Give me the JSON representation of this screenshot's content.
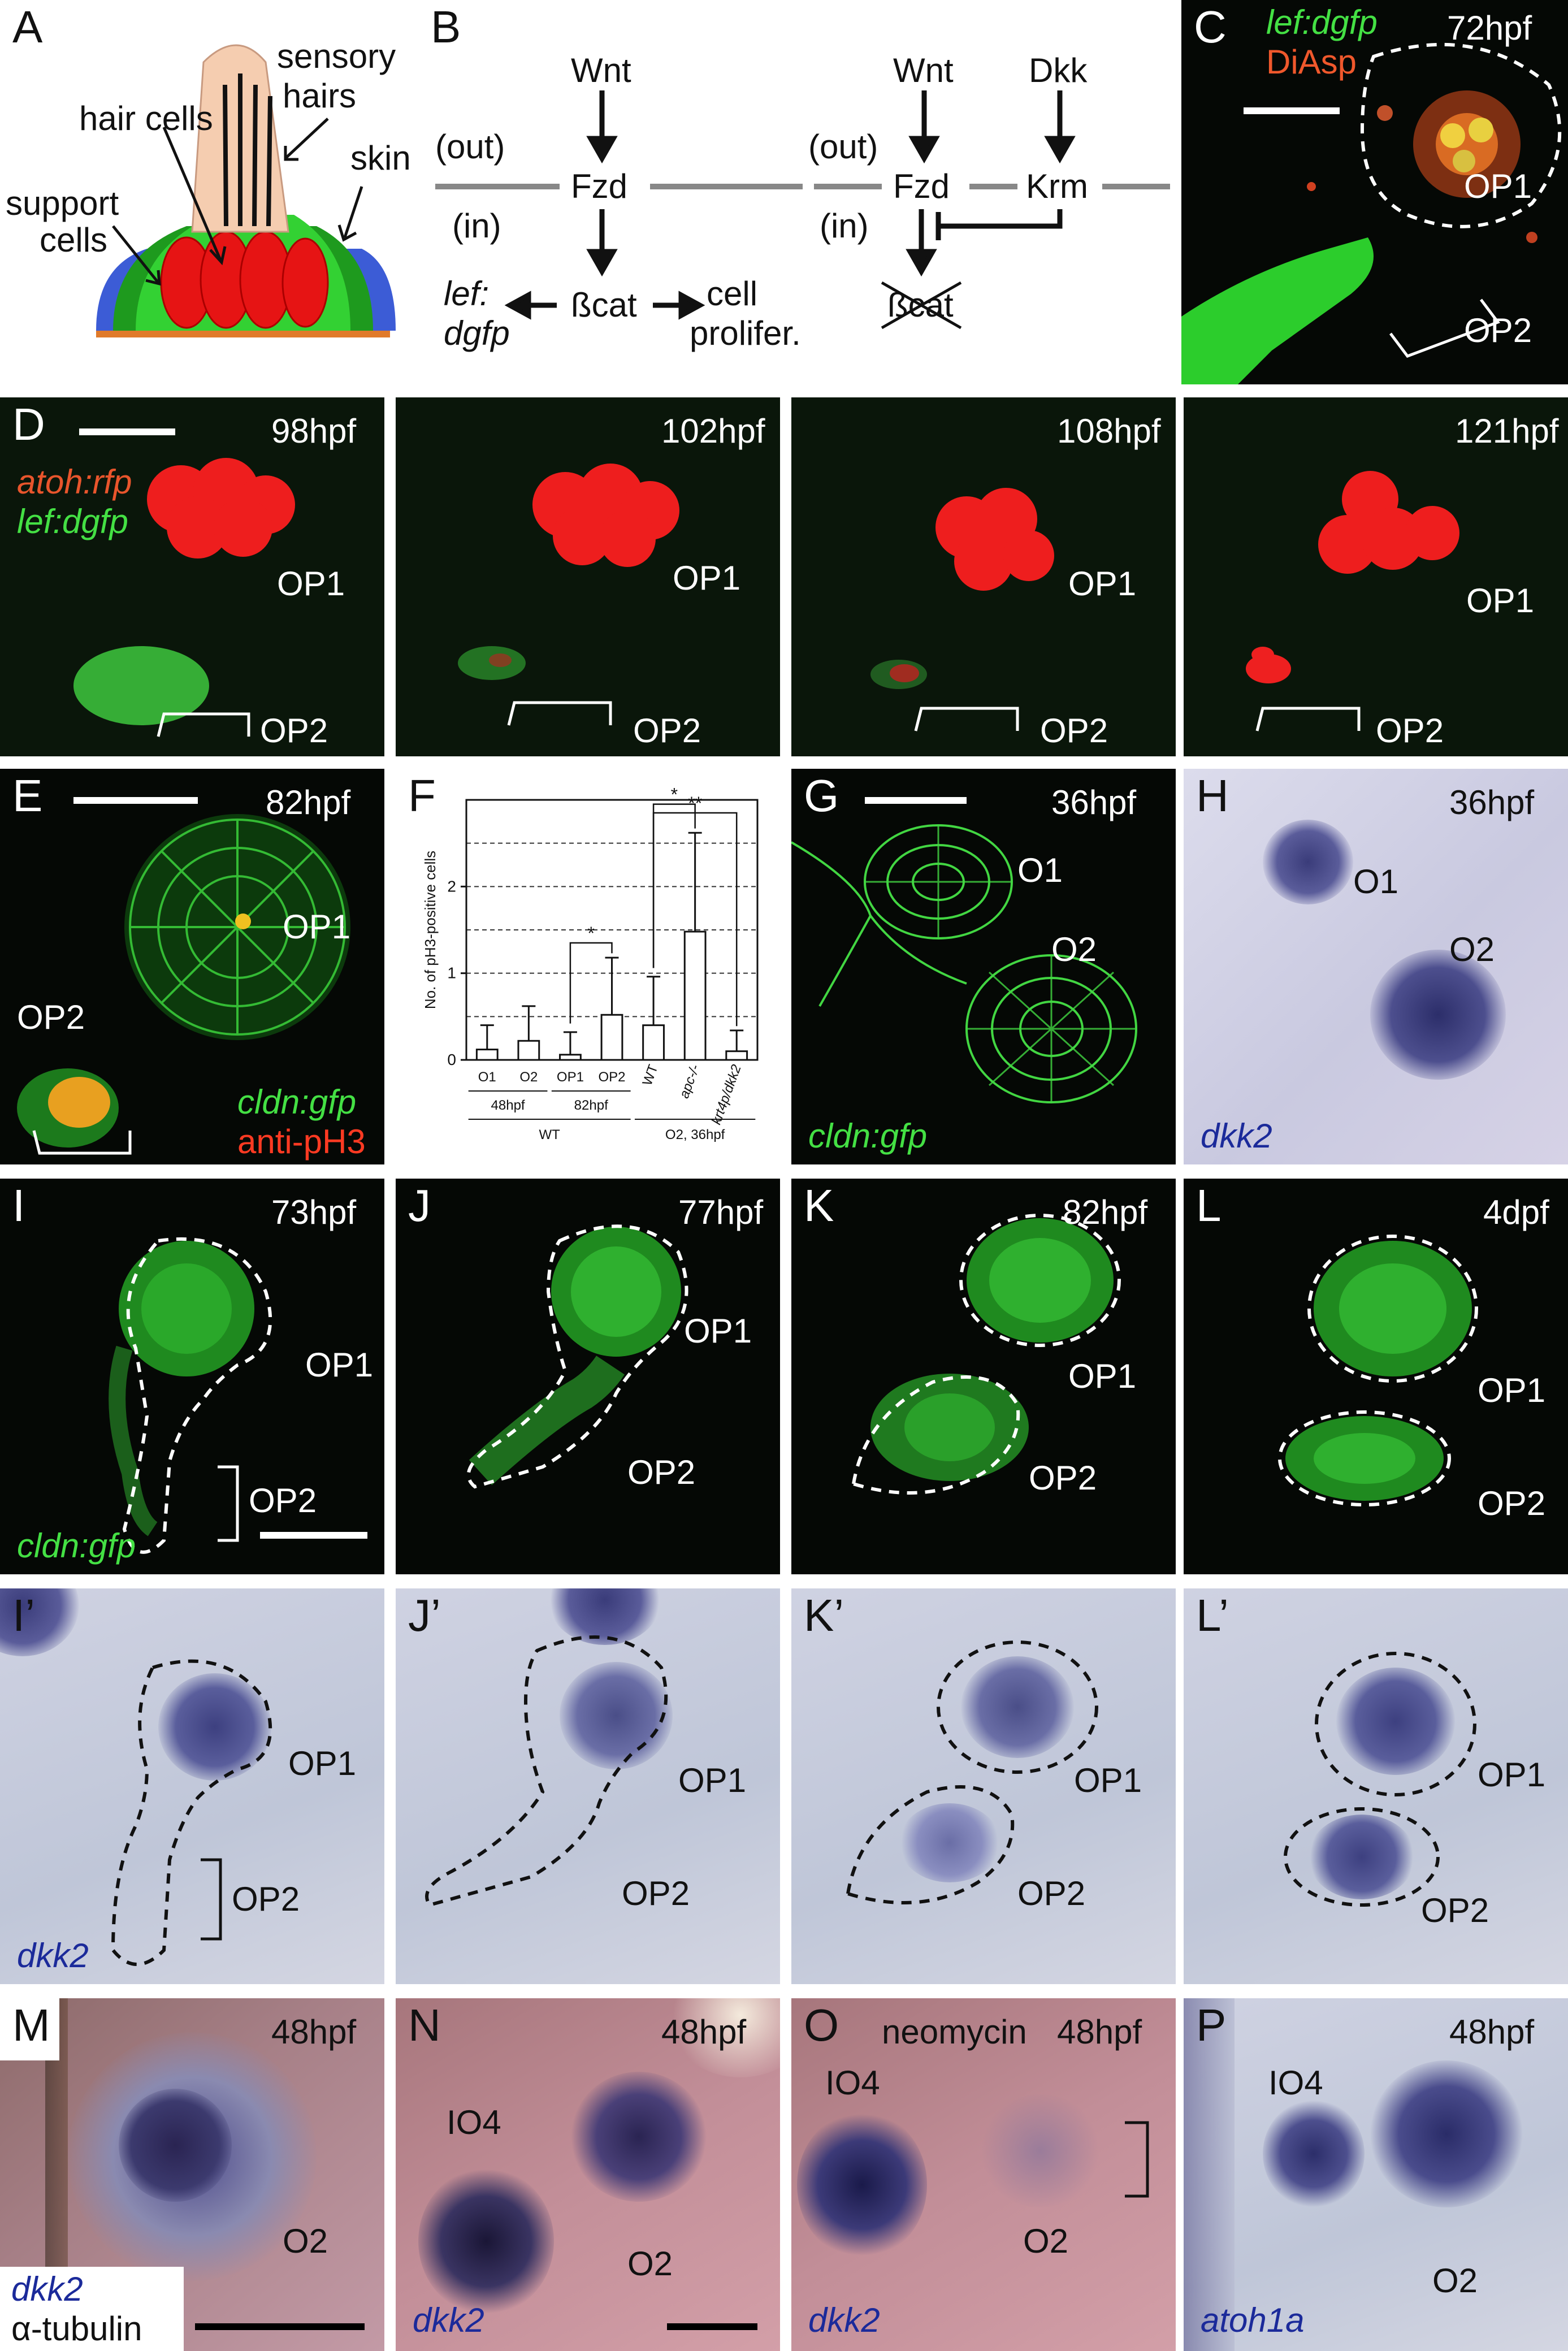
{
  "panels": {
    "A": {
      "letter": "A",
      "sensory_hairs_1": "sensory",
      "sensory_hairs_2": "hairs",
      "hair_cells": "hair cells",
      "skin": "skin",
      "support_1": "support",
      "support_2": "cells"
    },
    "B": {
      "letter": "B",
      "wnt_left": "Wnt",
      "out_left": "(out)",
      "in_left": "(in)",
      "fzd_left": "Fzd",
      "lef_1": "lef:",
      "lef_2": "dgfp",
      "bcat": "ßcat",
      "cell_1": "cell",
      "cell_2": "prolifer.",
      "wnt_right": "Wnt",
      "dkk": "Dkk",
      "out_right": "(out)",
      "in_right": "(in)",
      "fzd_right": "Fzd",
      "krm": "Krm",
      "bcat_crossed": "ßcat"
    },
    "C": {
      "letter": "C",
      "marker_1": "lef:dgfp",
      "marker_2": "DiAsp",
      "time": "72hpf",
      "op1": "OP1",
      "op2": "OP2"
    },
    "D": {
      "letter": "D",
      "marker_1": "atoh:rfp",
      "marker_2": "lef:dgfp",
      "frames": [
        {
          "time": "98hpf",
          "op1": "OP1",
          "op2": "OP2"
        },
        {
          "time": "102hpf",
          "op1": "OP1",
          "op2": "OP2"
        },
        {
          "time": "108hpf",
          "op1": "OP1",
          "op2": "OP2"
        },
        {
          "time": "121hpf",
          "op1": "OP1",
          "op2": "OP2"
        }
      ]
    },
    "E": {
      "letter": "E",
      "time": "82hpf",
      "op1": "OP1",
      "op2": "OP2",
      "marker_1": "cldn:gfp",
      "marker_2": "anti-pH3"
    },
    "G": {
      "letter": "G",
      "time": "36hpf",
      "o1": "O1",
      "o2": "O2",
      "marker": "cldn:gfp"
    },
    "H": {
      "letter": "H",
      "time": "36hpf",
      "o1": "O1",
      "o2": "O2",
      "marker": "dkk2"
    },
    "I": {
      "letter": "I",
      "time": "73hpf",
      "op1": "OP1",
      "op2": "OP2",
      "marker": "cldn:gfp"
    },
    "J": {
      "letter": "J",
      "time": "77hpf",
      "op1": "OP1",
      "op2": "OP2"
    },
    "K": {
      "letter": "K",
      "time": "82hpf",
      "op1": "OP1",
      "op2": "OP2"
    },
    "L": {
      "letter": "L",
      "time": "4dpf",
      "op1": "OP1",
      "op2": "OP2"
    },
    "Ip": {
      "letter": "I’",
      "op1": "OP1",
      "op2": "OP2",
      "marker": "dkk2"
    },
    "Jp": {
      "letter": "J’",
      "op1": "OP1",
      "op2": "OP2"
    },
    "Kp": {
      "letter": "K’",
      "op1": "OP1",
      "op2": "OP2"
    },
    "Lp": {
      "letter": "L’",
      "op1": "OP1",
      "op2": "OP2"
    },
    "M": {
      "letter": "M",
      "time": "48hpf",
      "o2": "O2",
      "marker_1": "dkk2",
      "marker_2": "α-tubulin"
    },
    "N": {
      "letter": "N",
      "time": "48hpf",
      "io4": "IO4",
      "o2": "O2",
      "marker": "dkk2"
    },
    "O": {
      "letter": "O",
      "treatment": "neomycin",
      "time": "48hpf",
      "io4": "IO4",
      "o2": "O2",
      "marker": "dkk2"
    },
    "P": {
      "letter": "P",
      "time": "48hpf",
      "io4": "IO4",
      "o2": "O2",
      "marker": "atoh1a"
    }
  },
  "chart_data": {
    "type": "bar",
    "panel_letter": "F",
    "ylabel": "No. of pH3-positive cells",
    "ylim": [
      0,
      3.0
    ],
    "yticks": [
      "0",
      "1",
      "2"
    ],
    "categories": [
      "O1",
      "O2",
      "OP1",
      "OP2",
      "WT",
      "apc-/-",
      "krt4p/dkk2"
    ],
    "values": [
      0.12,
      0.22,
      0.06,
      0.52,
      0.4,
      1.48,
      0.1
    ],
    "errors": [
      0.28,
      0.4,
      0.26,
      0.66,
      0.56,
      1.14,
      0.24
    ],
    "group_labels": [
      {
        "label": "48hpf",
        "categories": [
          "O1",
          "O2"
        ]
      },
      {
        "label": "82hpf",
        "categories": [
          "OP1",
          "OP2"
        ]
      }
    ],
    "super_group_labels": [
      {
        "label": "WT",
        "categories": [
          "O1",
          "O2",
          "OP1",
          "OP2"
        ]
      },
      {
        "label": "O2, 36hpf",
        "categories": [
          "WT",
          "apc-/-",
          "krt4p/dkk2"
        ]
      }
    ],
    "significance": [
      {
        "from": "OP1",
        "to": "OP2",
        "label": "*"
      },
      {
        "from": "WT",
        "to": "apc-/-",
        "label": "*"
      },
      {
        "from": "WT",
        "to": "krt4p/dkk2",
        "label": "**"
      }
    ],
    "grid": "dashed horizontal"
  }
}
